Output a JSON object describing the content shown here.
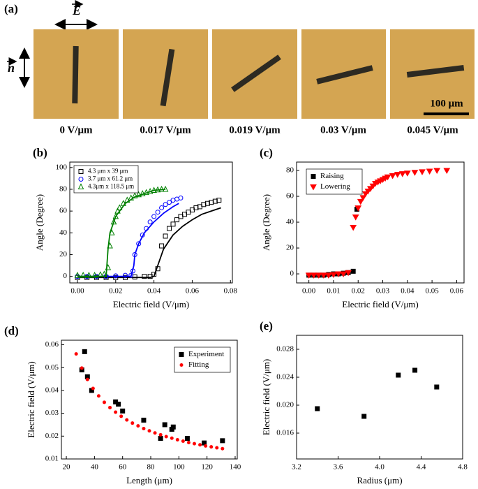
{
  "panel_a": {
    "label": "(a)",
    "field_label": "E",
    "normal_label": "n",
    "scale_bar": "100 μm",
    "captions": [
      "0 V/μm",
      "0.017 V/μm",
      "0.019 V/μm",
      "0.03 V/μm",
      "0.045 V/μm"
    ]
  },
  "chart_data": [
    {
      "type": "scatter",
      "label": "(b)",
      "xlabel": "Electric field (V/μm)",
      "ylabel": "Angle (Degree)",
      "xlim": [
        -0.004,
        0.081
      ],
      "ylim": [
        -6,
        105
      ],
      "xticks": [
        {
          "value": 0,
          "label": "0.00"
        },
        0.02,
        0.04,
        0.06,
        0.08
      ],
      "yticks": [
        0,
        20,
        40,
        60,
        80,
        100
      ],
      "legend": "upper left",
      "series": [
        {
          "name": "4.3 μm x 39 μm",
          "color": "#000000",
          "marker": "square",
          "filled": false,
          "x": [
            0,
            0.005,
            0.01,
            0.015,
            0.02,
            0.025,
            0.03,
            0.035,
            0.038,
            0.04,
            0.042,
            0.044,
            0.046,
            0.048,
            0.05,
            0.052,
            0.054,
            0.056,
            0.058,
            0.06,
            0.062,
            0.064,
            0.066,
            0.068,
            0.07,
            0.072,
            0.074
          ],
          "values": [
            -1,
            -1,
            -1,
            -1,
            -1,
            -1,
            -0.5,
            0,
            0,
            2,
            7,
            28,
            37,
            44,
            48,
            52,
            55,
            57,
            59,
            61,
            63,
            64,
            66,
            67,
            68,
            69,
            70
          ]
        },
        {
          "color": "#000000",
          "marker": "line",
          "x": [
            0,
            0.038,
            0.04,
            0.042,
            0.045,
            0.05,
            0.055,
            0.06,
            0.065,
            0.07,
            0.075
          ],
          "values": [
            -1,
            -1,
            0,
            10,
            25,
            38,
            46,
            52,
            57,
            60,
            63
          ]
        },
        {
          "name": "3.7 μm x 61.2 μm",
          "color": "#0000ff",
          "marker": "circle",
          "filled": false,
          "x": [
            0,
            0.005,
            0.01,
            0.015,
            0.02,
            0.025,
            0.028,
            0.029,
            0.03,
            0.032,
            0.034,
            0.036,
            0.038,
            0.04,
            0.042,
            0.044,
            0.046,
            0.048,
            0.05,
            0.052,
            0.054
          ],
          "values": [
            0,
            0,
            0,
            0,
            0.5,
            1,
            1,
            5,
            20,
            30,
            38,
            44,
            50,
            55,
            59,
            63,
            66,
            68,
            70,
            71,
            72
          ]
        },
        {
          "color": "#0000ff",
          "marker": "line",
          "x": [
            0,
            0.028,
            0.0295,
            0.03,
            0.032,
            0.035,
            0.04,
            0.045,
            0.05,
            0.053
          ],
          "values": [
            0,
            0,
            10,
            20,
            30,
            40,
            50,
            58,
            64,
            67
          ]
        },
        {
          "name": "4.3μm x 118.5 μm",
          "color": "#008000",
          "marker": "triangle",
          "filled": false,
          "x": [
            0,
            0.003,
            0.006,
            0.009,
            0.012,
            0.014,
            0.016,
            0.017,
            0.018,
            0.019,
            0.02,
            0.021,
            0.022,
            0.024,
            0.026,
            0.028,
            0.03,
            0.032,
            0.034,
            0.036,
            0.038,
            0.04,
            0.042,
            0.044,
            0.046
          ],
          "values": [
            1,
            1,
            1,
            1,
            1.5,
            2,
            8,
            28,
            40,
            50,
            55,
            60,
            63,
            67,
            70,
            72,
            74,
            75,
            76,
            77,
            78,
            79,
            79.5,
            80,
            80
          ]
        },
        {
          "color": "#008000",
          "marker": "line",
          "x": [
            0,
            0.015,
            0.016,
            0.017,
            0.02,
            0.025,
            0.03,
            0.035,
            0.04,
            0.046
          ],
          "values": [
            0,
            0,
            25,
            40,
            55,
            67,
            73,
            76,
            79,
            80
          ]
        }
      ]
    },
    {
      "type": "scatter",
      "label": "(c)",
      "xlabel": "Electric field (V/μm)",
      "ylabel": "Angle (Degree)",
      "xlim": [
        -0.005,
        0.063
      ],
      "ylim": [
        -7,
        86.5
      ],
      "xticks": [
        {
          "value": 0,
          "label": "0.00"
        },
        0.01,
        0.02,
        0.03,
        0.04,
        0.05,
        0.06
      ],
      "yticks": [
        0,
        20,
        40,
        60,
        80
      ],
      "legend": "upper left",
      "series": [
        {
          "name": "Raising",
          "color": "#000000",
          "marker": "square",
          "filled": true,
          "x": [
            0,
            0.002,
            0.004,
            0.006,
            0.008,
            0.01,
            0.012,
            0.014,
            0.016,
            0.018,
            0.0195
          ],
          "values": [
            -1,
            -1,
            -1,
            -1,
            -0.5,
            0,
            0,
            0.5,
            1,
            2,
            50
          ]
        },
        {
          "name": "Lowering",
          "color": "#ff0000",
          "marker": "triangle-down",
          "filled": true,
          "x": [
            0,
            0.002,
            0.004,
            0.006,
            0.008,
            0.01,
            0.012,
            0.014,
            0.016,
            0.018,
            0.019,
            0.02,
            0.021,
            0.022,
            0.023,
            0.024,
            0.025,
            0.026,
            0.027,
            0.028,
            0.029,
            0.03,
            0.031,
            0.032,
            0.034,
            0.036,
            0.038,
            0.04,
            0.043,
            0.046,
            0.049,
            0.052,
            0.056
          ],
          "values": [
            -1,
            -1,
            -1,
            -1,
            -1,
            -0.5,
            0,
            0,
            1,
            36,
            44,
            51,
            56,
            59,
            62,
            64,
            66,
            68,
            70,
            71,
            72,
            73,
            74,
            75,
            76,
            77,
            77.5,
            78,
            78.5,
            79,
            79.5,
            80,
            80
          ]
        }
      ]
    },
    {
      "type": "scatter",
      "label": "(d)",
      "xlabel": "Length (μm)",
      "ylabel": "Electric field (V/μm)",
      "xlim": [
        16.5,
        141.5
      ],
      "ylim": [
        0.01,
        0.062
      ],
      "xticks": [
        20,
        40,
        60,
        80,
        100,
        120,
        140
      ],
      "yticks": [
        0.01,
        0.02,
        0.03,
        0.04,
        0.05,
        0.06
      ],
      "legend": "upper right",
      "series": [
        {
          "name": "Experiment",
          "color": "#000000",
          "marker": "square",
          "filled": true,
          "x": [
            31,
            33,
            35,
            38,
            55,
            57,
            60,
            75,
            87,
            90,
            95,
            96,
            106,
            118,
            131
          ],
          "values": [
            0.049,
            0.057,
            0.046,
            0.04,
            0.035,
            0.034,
            0.031,
            0.027,
            0.019,
            0.025,
            0.023,
            0.024,
            0.019,
            0.017,
            0.018
          ]
        },
        {
          "name": "Fitting",
          "color": "#ff0000",
          "marker": "dot",
          "filled": true,
          "x": [
            27,
            31,
            35,
            39,
            43,
            47,
            51,
            55,
            59,
            63,
            67,
            71,
            75,
            79,
            83,
            87,
            91,
            95,
            99,
            103,
            107,
            111,
            115,
            119,
            123,
            127,
            131
          ],
          "values": [
            0.056,
            0.0498,
            0.0448,
            0.0409,
            0.0376,
            0.0348,
            0.0325,
            0.0305,
            0.0287,
            0.0271,
            0.0257,
            0.0245,
            0.0233,
            0.0223,
            0.0214,
            0.0206,
            0.0198,
            0.0191,
            0.0184,
            0.0178,
            0.0172,
            0.0167,
            0.0162,
            0.0157,
            0.0153,
            0.0149,
            0.0145
          ]
        }
      ]
    },
    {
      "type": "scatter",
      "label": "(e)",
      "xlabel": "Radius (μm)",
      "ylabel": "Electric field (V/μm)",
      "xlim": [
        3.2,
        4.8
      ],
      "ylim": [
        0.0123,
        0.03
      ],
      "xticks": [
        3.2,
        3.6,
        {
          "value": 4,
          "label": "4.0"
        },
        4.4,
        4.8
      ],
      "yticks": [
        0.016,
        {
          "value": 0.02,
          "label": "0.020"
        },
        0.024,
        0.028
      ],
      "series": [
        {
          "color": "#000000",
          "marker": "square",
          "filled": true,
          "x": [
            3.4,
            3.85,
            4.18,
            4.34,
            4.55
          ],
          "values": [
            0.0195,
            0.0184,
            0.0243,
            0.025,
            0.0226
          ]
        }
      ]
    }
  ]
}
